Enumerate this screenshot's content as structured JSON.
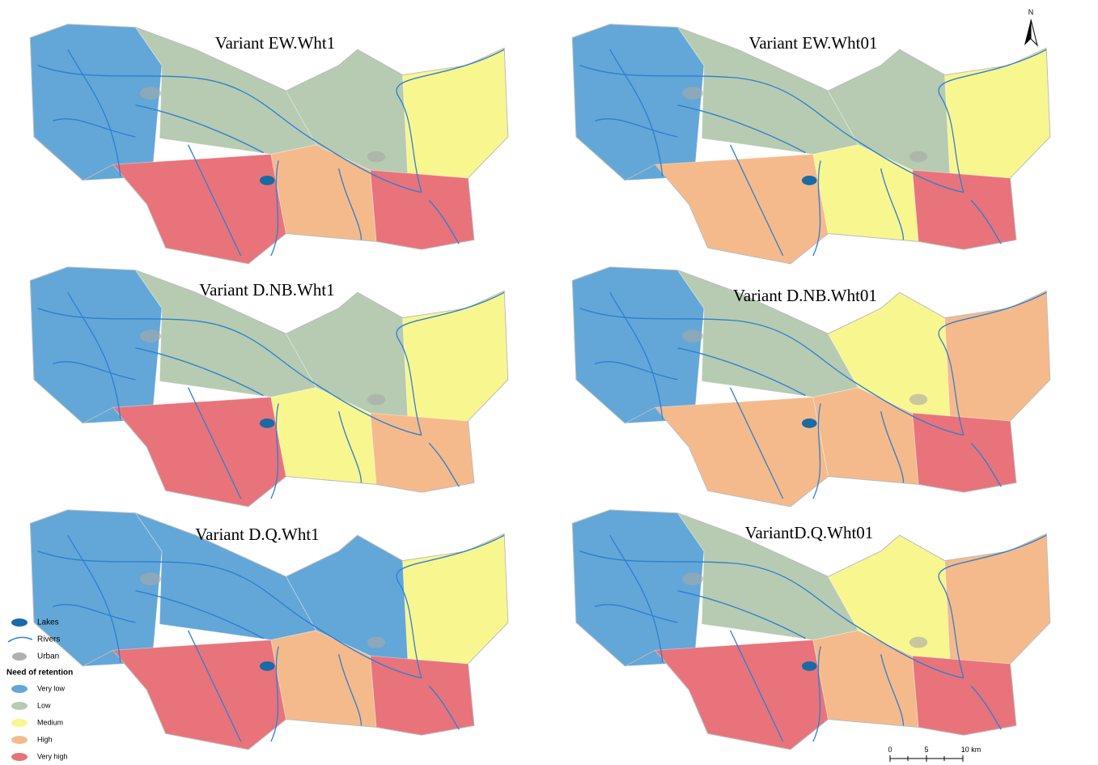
{
  "panels": [
    {
      "title": "Variant EW.Wht1"
    },
    {
      "title": "Variant EW.Wht01"
    },
    {
      "title": "Variant D.NB.Wht1"
    },
    {
      "title": "Variant D.NB.Wht01"
    },
    {
      "title": "Variant D.Q.Wht1"
    },
    {
      "title": "VariantD.Q.Wht01"
    }
  ],
  "legend": {
    "items": [
      "Lakes",
      "Rivers",
      "Urban"
    ],
    "heading": "Need of retention",
    "classes": [
      "Very low",
      "Low",
      "Medium",
      "High",
      "Very high"
    ]
  },
  "north_arrow": "N",
  "scale_bar": [
    "0",
    "5",
    "10 km"
  ]
}
